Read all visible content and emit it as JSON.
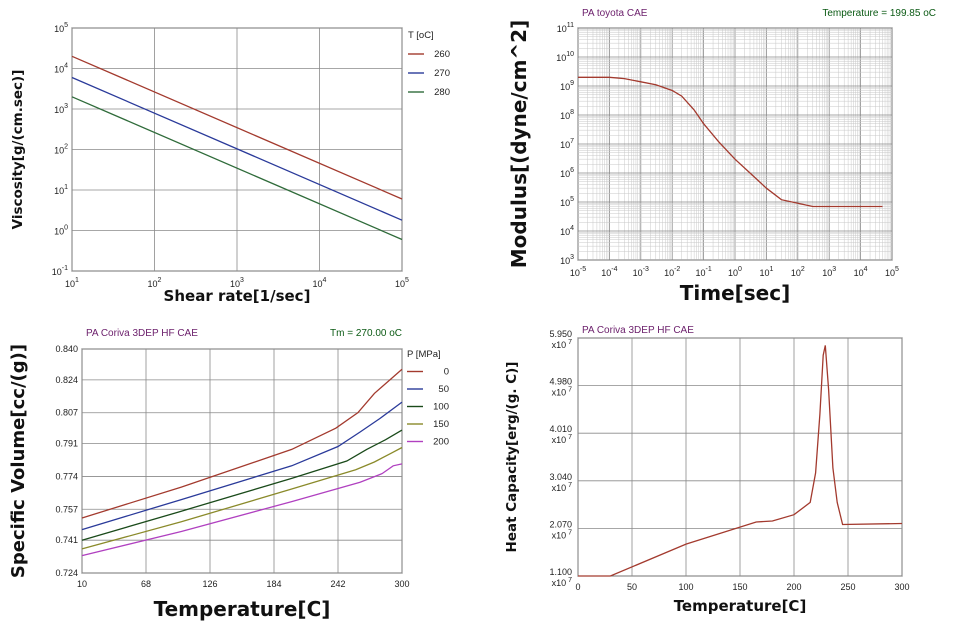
{
  "colors": {
    "red": "#a33a2e",
    "blue": "#2a3a9a",
    "green": "#2f6b3a",
    "olive": "#8a8a2a",
    "magenta": "#b040c0",
    "darkgreen": "#1a4a1a",
    "header_purple": "#6b1e6b",
    "header_green": "#0b5a14",
    "grid": "#8a8a8a"
  },
  "chart_data": [
    {
      "type": "line",
      "id": "viscosity",
      "xlabel": "Shear rate[1/sec]",
      "ylabel": "Viscosity[g/(cm.sec)]",
      "xscale": "log",
      "yscale": "log",
      "xlim": [
        10,
        100000
      ],
      "ylim": [
        0.1,
        100000
      ],
      "x_ticks": [
        {
          "v": 10,
          "b": "10",
          "e": "1"
        },
        {
          "v": 100,
          "b": "10",
          "e": "2"
        },
        {
          "v": 1000,
          "b": "10",
          "e": "3"
        },
        {
          "v": 10000,
          "b": "10",
          "e": "4"
        },
        {
          "v": 100000,
          "b": "10",
          "e": "5"
        }
      ],
      "y_ticks": [
        {
          "v": 0.1,
          "b": "10",
          "e": "-1"
        },
        {
          "v": 1,
          "b": "10",
          "e": "0"
        },
        {
          "v": 10,
          "b": "10",
          "e": "1"
        },
        {
          "v": 100,
          "b": "10",
          "e": "2"
        },
        {
          "v": 1000,
          "b": "10",
          "e": "3"
        },
        {
          "v": 10000,
          "b": "10",
          "e": "4"
        },
        {
          "v": 100000,
          "b": "10",
          "e": "5"
        }
      ],
      "legend_title": "T [oC]",
      "grid": true,
      "legend": "top-right",
      "series": [
        {
          "name": "260",
          "color": "#a33a2e",
          "x": [
            10,
            100000
          ],
          "y": [
            20000,
            6
          ]
        },
        {
          "name": "270",
          "color": "#2a3a9a",
          "x": [
            10,
            100000
          ],
          "y": [
            6000,
            1.8
          ]
        },
        {
          "name": "280",
          "color": "#2f6b3a",
          "x": [
            10,
            100000
          ],
          "y": [
            2000,
            0.6
          ]
        }
      ]
    },
    {
      "type": "line",
      "id": "modulus",
      "header_left": "PA    toyota    CAE",
      "header_right": "Temperature = 199.85 oC",
      "xlabel": "Time[sec]",
      "ylabel": "Modulus[(dyne/cm^2]",
      "xscale": "log",
      "yscale": "log",
      "xlim": [
        1e-05,
        100000
      ],
      "ylim": [
        1000,
        100000000000
      ],
      "x_ticks": [
        {
          "v": 1e-05,
          "b": "10",
          "e": "-5"
        },
        {
          "v": 0.0001,
          "b": "10",
          "e": "-4"
        },
        {
          "v": 0.001,
          "b": "10",
          "e": "-3"
        },
        {
          "v": 0.01,
          "b": "10",
          "e": "-2"
        },
        {
          "v": 0.1,
          "b": "10",
          "e": "-1"
        },
        {
          "v": 1,
          "b": "10",
          "e": "0"
        },
        {
          "v": 10,
          "b": "10",
          "e": "1"
        },
        {
          "v": 100,
          "b": "10",
          "e": "2"
        },
        {
          "v": 1000,
          "b": "10",
          "e": "3"
        },
        {
          "v": 10000,
          "b": "10",
          "e": "4"
        },
        {
          "v": 100000,
          "b": "10",
          "e": "5"
        }
      ],
      "y_ticks": [
        {
          "v": 1000,
          "b": "10",
          "e": "3"
        },
        {
          "v": 10000,
          "b": "10",
          "e": "4"
        },
        {
          "v": 100000,
          "b": "10",
          "e": "5"
        },
        {
          "v": 1000000,
          "b": "10",
          "e": "6"
        },
        {
          "v": 10000000,
          "b": "10",
          "e": "7"
        },
        {
          "v": 100000000,
          "b": "10",
          "e": "8"
        },
        {
          "v": 1000000000,
          "b": "10",
          "e": "9"
        },
        {
          "v": 10000000000,
          "b": "10",
          "e": "10"
        },
        {
          "v": 100000000000,
          "b": "10",
          "e": "11"
        }
      ],
      "grid": true,
      "series": [
        {
          "name": "",
          "color": "#a33a2e",
          "x": [
            1e-05,
            0.0001,
            0.0003,
            0.001,
            0.003,
            0.01,
            0.02,
            0.05,
            0.1,
            0.3,
            1,
            3,
            10,
            30,
            100,
            300,
            1000,
            10000,
            50000
          ],
          "y": [
            2000000000,
            2000000000,
            1800000000,
            1400000000,
            1100000000,
            700000000,
            450000000,
            150000000,
            50000000,
            12000000,
            3000000,
            1000000,
            300000,
            120000,
            90000,
            70000,
            70000,
            70000,
            70000
          ]
        }
      ]
    },
    {
      "type": "line",
      "id": "specific-volume",
      "header_left": "PA    Coriva 3DEP HF    CAE",
      "header_right": "Tm = 270.00 oC",
      "xlabel": "Temperature[C]",
      "ylabel": "Specific Volume[cc/(g)]",
      "xlim": [
        10,
        300
      ],
      "ylim": [
        0.724,
        0.84
      ],
      "x_ticks": [
        10,
        68,
        126,
        184,
        242,
        300
      ],
      "y_ticks": [
        0.724,
        0.741,
        0.757,
        0.774,
        0.791,
        0.807,
        0.824,
        0.84
      ],
      "legend_title": "P [MPa]",
      "grid": true,
      "legend": "top-right",
      "series": [
        {
          "name": "0",
          "color": "#a33a2e",
          "x": [
            10,
            100,
            200,
            240,
            260,
            275,
            300
          ],
          "y": [
            0.7525,
            0.7685,
            0.788,
            0.799,
            0.807,
            0.817,
            0.8295
          ]
        },
        {
          "name": "50",
          "color": "#2a3a9a",
          "x": [
            10,
            100,
            200,
            242,
            262,
            280,
            300
          ],
          "y": [
            0.7465,
            0.762,
            0.7795,
            0.7895,
            0.797,
            0.804,
            0.8125
          ]
        },
        {
          "name": "100",
          "color": "#1a4a1a",
          "x": [
            10,
            100,
            200,
            250,
            268,
            285,
            300
          ],
          "y": [
            0.741,
            0.756,
            0.773,
            0.782,
            0.788,
            0.793,
            0.798
          ]
        },
        {
          "name": "150",
          "color": "#8a8a2a",
          "x": [
            10,
            100,
            200,
            258,
            275,
            290,
            300
          ],
          "y": [
            0.7365,
            0.7505,
            0.7675,
            0.7775,
            0.7815,
            0.786,
            0.789
          ]
        },
        {
          "name": "200",
          "color": "#b040c0",
          "x": [
            10,
            100,
            200,
            262,
            282,
            292,
            300
          ],
          "y": [
            0.733,
            0.7455,
            0.761,
            0.771,
            0.7755,
            0.7795,
            0.7805
          ]
        }
      ]
    },
    {
      "type": "line",
      "id": "heat-capacity",
      "header_left": "PA    Coriva 3DEP HF    CAE",
      "xlabel": "Temperature[C]",
      "ylabel": "Heat Capacity[erg/(g. C)]",
      "xlim": [
        0,
        300
      ],
      "ylim": [
        1.1,
        5.95
      ],
      "x_ticks": [
        0,
        50,
        100,
        150,
        200,
        250,
        300
      ],
      "y_ticks": [
        {
          "v": 1.1,
          "t": "1.100"
        },
        {
          "v": 2.07,
          "t": "2.070"
        },
        {
          "v": 3.04,
          "t": "3.040"
        },
        {
          "v": 4.01,
          "t": "4.010"
        },
        {
          "v": 4.98,
          "t": "4.980"
        },
        {
          "v": 5.95,
          "t": "5.950"
        }
      ],
      "y_tick_multiplier": "x10",
      "y_tick_multiplier_exp": "7",
      "grid": true,
      "series": [
        {
          "name": "",
          "color": "#a33a2e",
          "x": [
            0,
            30,
            100,
            165,
            180,
            200,
            215,
            220,
            224,
            227,
            229,
            232,
            236,
            240,
            245,
            300
          ],
          "y": [
            1.1,
            1.1,
            1.75,
            2.2,
            2.22,
            2.35,
            2.6,
            3.2,
            4.4,
            5.6,
            5.8,
            4.9,
            3.3,
            2.6,
            2.15,
            2.17
          ]
        }
      ]
    }
  ]
}
